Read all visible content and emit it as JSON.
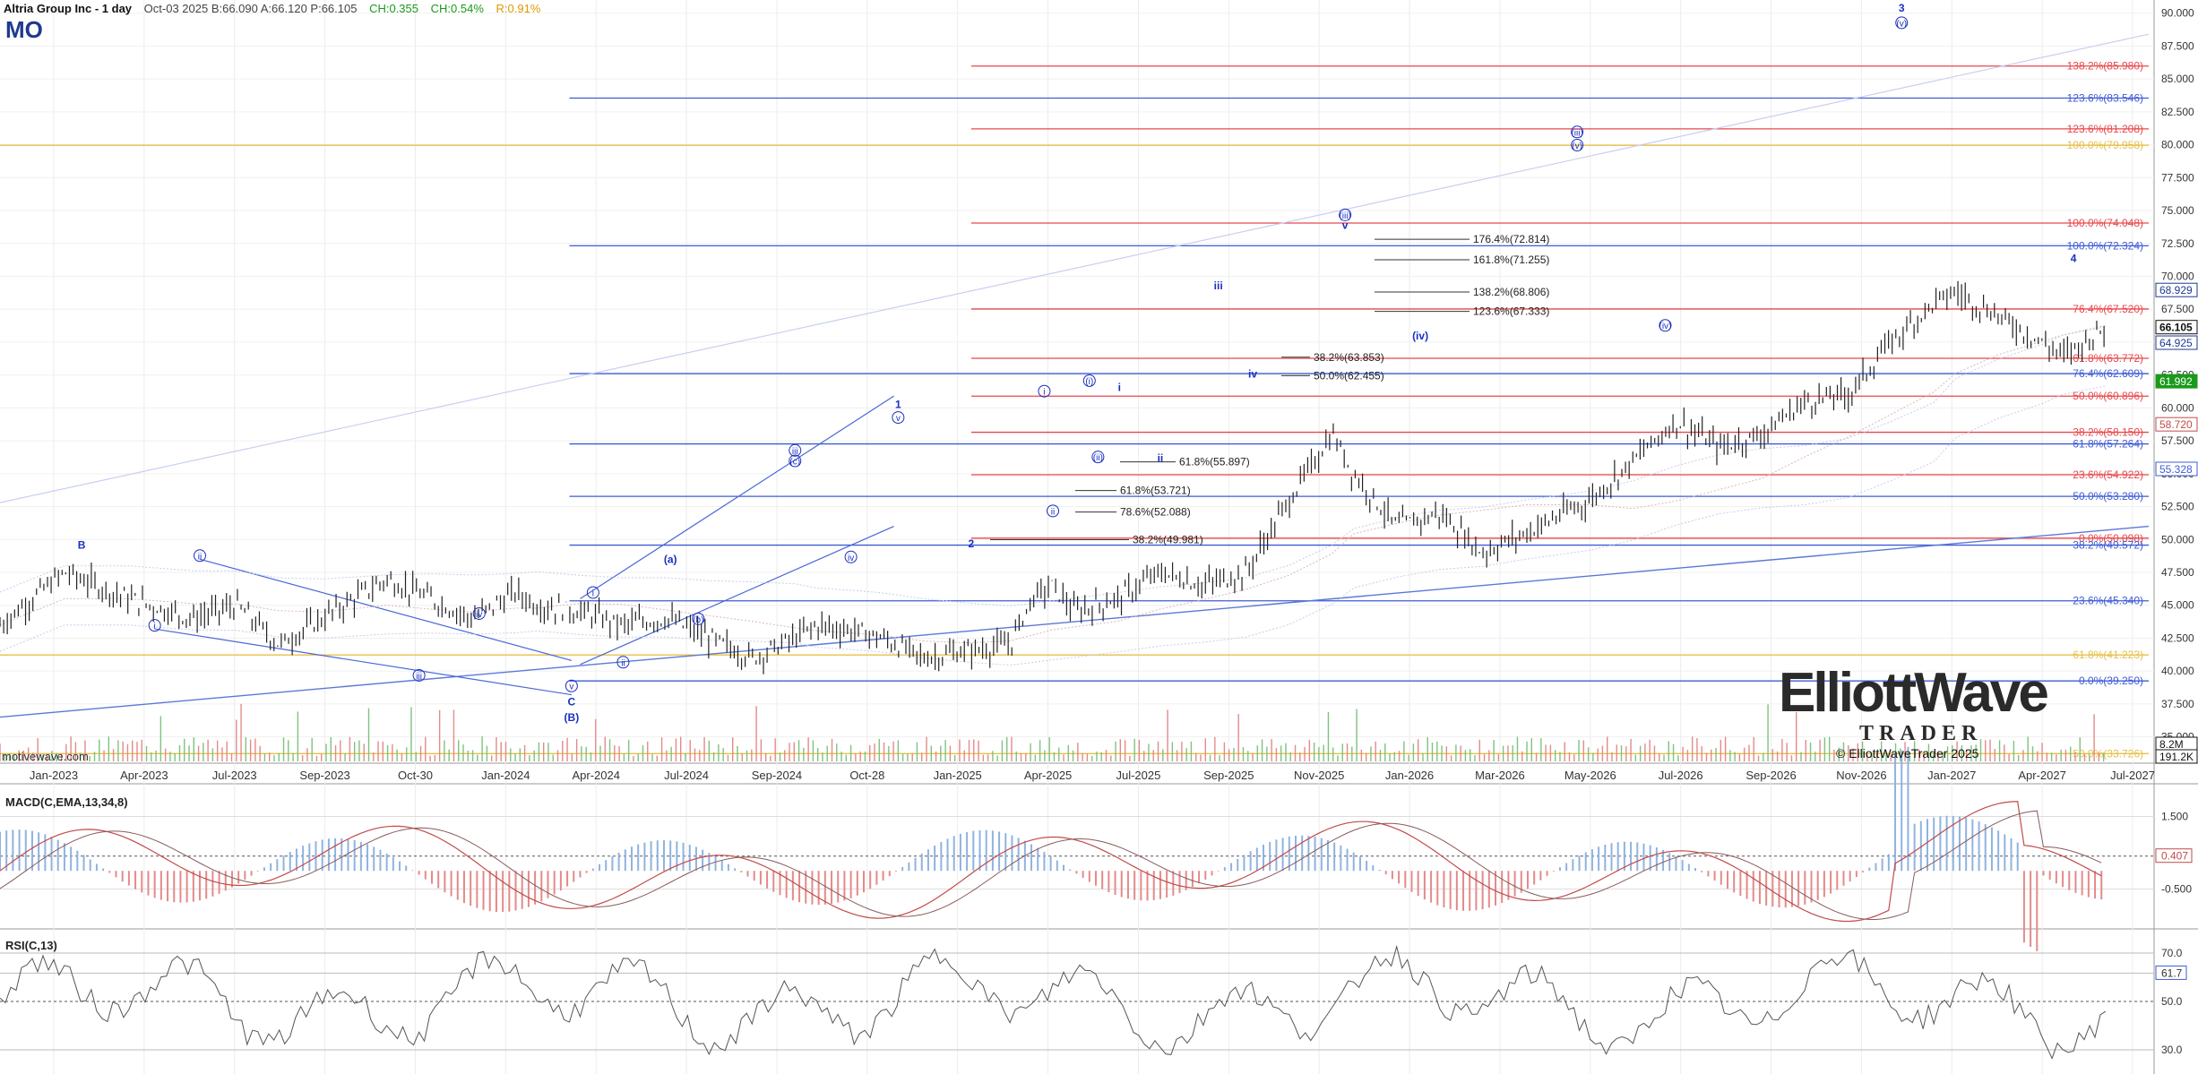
{
  "header": {
    "title": "Altria Group Inc - 1 day",
    "quote": "Oct-03 2025  B:66.090  A:66.120  P:66.105",
    "change_abs": "CH:0.355",
    "change_pct": "CH:0.54%",
    "range": "R:0.91%",
    "symbol": "MO"
  },
  "watermark": "motivewave.com",
  "copyright": "© ElliottWaveTrader 2025",
  "logo": {
    "line1": "ElliottWave",
    "line2": "TRADER"
  },
  "colors": {
    "up": "#222222",
    "fib_red": "#e8474b",
    "fib_blue": "#3f5bd6",
    "fib_gold": "#e8c04a",
    "wave": "#1a2fc0",
    "macd": "#c24a4a",
    "rsi": "#555555"
  },
  "chart_data": [
    {
      "type": "line",
      "name": "price",
      "ylim": [
        33,
        91
      ],
      "yticks": [
        "90.000",
        "87.500",
        "85.000",
        "82.500",
        "80.000",
        "77.500",
        "75.000",
        "72.500",
        "70.000",
        "67.500",
        "65.000",
        "62.500",
        "60.000",
        "57.500",
        "55.000",
        "52.500",
        "50.000",
        "47.500",
        "45.000",
        "42.500",
        "40.000",
        "37.500",
        "35.000"
      ],
      "xticks": [
        "Jan-2023",
        "Apr-2023",
        "Jul-2023",
        "Sep-2023",
        "Oct-30",
        "Jan-2024",
        "Apr-2024",
        "Jul-2024",
        "Sep-2024",
        "Oct-28",
        "Jan-2025",
        "Apr-2025",
        "Jul-2025",
        "Sep-2025",
        "Nov-2025",
        "Jan-2026",
        "Mar-2026",
        "May-2026",
        "Jul-2026",
        "Sep-2026",
        "Nov-2026",
        "Jan-2027",
        "Apr-2027",
        "Jul-2027"
      ],
      "price_points": [
        [
          0,
          43.5
        ],
        [
          3,
          47.5
        ],
        [
          6,
          45.5
        ],
        [
          9,
          44
        ],
        [
          11,
          45
        ],
        [
          13,
          42
        ],
        [
          15,
          44
        ],
        [
          18,
          47
        ],
        [
          20,
          45.5
        ],
        [
          22,
          44
        ],
        [
          24,
          46
        ],
        [
          25,
          45
        ],
        [
          27,
          44.5
        ],
        [
          29,
          43.5
        ],
        [
          31,
          44
        ],
        [
          33,
          42.5
        ],
        [
          35,
          41
        ],
        [
          37,
          42.5
        ],
        [
          38,
          43.5
        ],
        [
          40,
          43
        ],
        [
          41,
          42.5
        ],
        [
          43,
          41
        ],
        [
          45,
          41.5
        ],
        [
          47,
          42
        ],
        [
          48,
          45.5
        ],
        [
          49,
          46.5
        ],
        [
          50,
          44.5
        ],
        [
          52,
          45.5
        ],
        [
          54,
          47.5
        ],
        [
          56,
          46.5
        ],
        [
          58,
          47.5
        ],
        [
          60,
          53
        ],
        [
          62,
          58
        ],
        [
          63,
          55
        ],
        [
          65,
          51
        ],
        [
          67,
          52
        ],
        [
          69,
          49
        ],
        [
          71,
          50.5
        ],
        [
          74,
          53
        ],
        [
          76,
          56
        ],
        [
          78,
          59
        ],
        [
          80,
          57
        ],
        [
          82,
          58
        ],
        [
          84,
          60.5
        ],
        [
          86,
          61
        ],
        [
          88,
          65
        ],
        [
          90,
          68
        ],
        [
          91,
          68.8
        ],
        [
          93,
          67
        ],
        [
          95,
          65
        ],
        [
          96,
          64
        ],
        [
          98,
          66.1
        ]
      ],
      "price_labels": [
        {
          "text": "66.105",
          "color": "#111111"
        },
        {
          "text": "68.929",
          "color": "#1f3a8f"
        },
        {
          "text": "64.925",
          "color": "#1f3a8f"
        },
        {
          "text": "61.992",
          "color": "#1a9a1a"
        },
        {
          "text": "58.720",
          "color": "#c24a4a"
        },
        {
          "text": "55.328",
          "color": "#3f5bd6"
        },
        {
          "text": "8.2M",
          "color": "#111111"
        },
        {
          "text": "191.2K",
          "color": "#111111"
        }
      ],
      "fib_levels_right": [
        {
          "label": "138.2%(85.980)",
          "value": 85.98,
          "color": "red",
          "start": 0.452
        },
        {
          "label": "123.6%(83.546)",
          "value": 83.546,
          "color": "blue",
          "start": 0.265
        },
        {
          "label": "123.6%(81.208)",
          "value": 81.208,
          "color": "red",
          "start": 0.452
        },
        {
          "label": "100.0%(79.958)",
          "value": 79.958,
          "color": "gold",
          "start": 0.0
        },
        {
          "label": "100.0%(74.048)",
          "value": 74.048,
          "color": "red",
          "start": 0.452
        },
        {
          "label": "100.0%(72.324)",
          "value": 72.324,
          "color": "blue",
          "start": 0.265
        },
        {
          "label": "76.4%(67.520)",
          "value": 67.52,
          "color": "red",
          "start": 0.452
        },
        {
          "label": "61.8%(63.772)",
          "value": 63.772,
          "color": "red",
          "start": 0.452
        },
        {
          "label": "76.4%(62.609)",
          "value": 62.609,
          "color": "blue",
          "start": 0.265
        },
        {
          "label": "50.0%(60.896)",
          "value": 60.896,
          "color": "red",
          "start": 0.452
        },
        {
          "label": "38.2%(58.150)",
          "value": 58.15,
          "color": "red",
          "start": 0.452
        },
        {
          "label": "61.8%(57.264)",
          "value": 57.264,
          "color": "blue",
          "start": 0.265
        },
        {
          "label": "23.6%(54.922)",
          "value": 54.922,
          "color": "red",
          "start": 0.452
        },
        {
          "label": "50.0%(53.280)",
          "value": 53.28,
          "color": "blue",
          "start": 0.265
        },
        {
          "label": "0.0%(50.098)",
          "value": 50.098,
          "color": "red",
          "start": 0.452
        },
        {
          "label": "38.2%(49.572)",
          "value": 49.572,
          "color": "blue",
          "start": 0.265
        },
        {
          "label": "23.6%(45.340)",
          "value": 45.34,
          "color": "blue",
          "start": 0.265
        },
        {
          "label": "61.8%(41.223)",
          "value": 41.223,
          "color": "gold",
          "start": 0.0
        },
        {
          "label": "0.0%(39.250)",
          "value": 39.25,
          "color": "blue",
          "start": 0.265
        },
        {
          "label": "50.0%(33.726)",
          "value": 33.726,
          "color": "gold",
          "start": 0.0
        }
      ],
      "fib_levels_inline": [
        {
          "label": "176.4%(72.814)",
          "value": 72.814
        },
        {
          "label": "161.8%(71.255)",
          "value": 71.255
        },
        {
          "label": "138.2%(68.806)",
          "value": 68.806
        },
        {
          "label": "123.6%(67.333)",
          "value": 67.333
        },
        {
          "label": "38.2%(63.853)",
          "value": 63.853
        },
        {
          "label": "50.0%(62.455)",
          "value": 62.455
        },
        {
          "label": "61.8%(55.897)",
          "value": 55.897
        },
        {
          "label": "61.8%(53.721)",
          "value": 53.721
        },
        {
          "label": "78.6%(52.088)",
          "value": 52.088
        },
        {
          "label": "38.2%(49.981)",
          "value": 49.981
        }
      ],
      "wave_labels": [
        {
          "text": "B",
          "x": 3.8,
          "y": 49.3,
          "circle": false
        },
        {
          "text": "i",
          "x": 7.2,
          "y": 43.2,
          "circle": true
        },
        {
          "text": "ii",
          "x": 9.3,
          "y": 48.5,
          "circle": true
        },
        {
          "text": "iii",
          "x": 19.5,
          "y": 39.4,
          "circle": true
        },
        {
          "text": "iv",
          "x": 22.3,
          "y": 44.1,
          "circle": true
        },
        {
          "text": "v",
          "x": 26.6,
          "y": 38.6,
          "circle": true
        },
        {
          "text": "C",
          "x": 26.6,
          "y": 37.4,
          "circle": false
        },
        {
          "text": "(B)",
          "x": 26.6,
          "y": 36.2,
          "circle": false
        },
        {
          "text": "i",
          "x": 27.6,
          "y": 45.7,
          "circle": true
        },
        {
          "text": "ii",
          "x": 29.0,
          "y": 40.4,
          "circle": true
        },
        {
          "text": "(a)",
          "x": 31.2,
          "y": 48.2,
          "circle": false
        },
        {
          "text": "(b)",
          "x": 32.5,
          "y": 43.7,
          "circle": true
        },
        {
          "text": "(c)",
          "x": 37.0,
          "y": 55.7,
          "circle": true
        },
        {
          "text": "iii",
          "x": 37.0,
          "y": 56.5,
          "circle": true
        },
        {
          "text": "iv",
          "x": 39.6,
          "y": 48.4,
          "circle": true
        },
        {
          "text": "v",
          "x": 41.8,
          "y": 59.0,
          "circle": true
        },
        {
          "text": "1",
          "x": 41.8,
          "y": 60.0,
          "circle": false
        },
        {
          "text": "2",
          "x": 45.2,
          "y": 49.4,
          "circle": false
        },
        {
          "text": "i",
          "x": 48.6,
          "y": 61.0,
          "circle": true
        },
        {
          "text": "ii",
          "x": 49.0,
          "y": 51.9,
          "circle": true
        },
        {
          "text": "(i)",
          "x": 50.7,
          "y": 61.8,
          "circle": true
        },
        {
          "text": "(ii)",
          "x": 51.1,
          "y": 56.0,
          "circle": true
        },
        {
          "text": "i",
          "x": 52.1,
          "y": 61.3,
          "circle": false
        },
        {
          "text": "ii",
          "x": 54.0,
          "y": 55.9,
          "circle": false
        },
        {
          "text": "iii",
          "x": 56.7,
          "y": 69.0,
          "circle": false
        },
        {
          "text": "iv",
          "x": 58.3,
          "y": 62.3,
          "circle": false
        },
        {
          "text": "(iii)",
          "x": 62.6,
          "y": 74.4,
          "circle": true
        },
        {
          "text": "v",
          "x": 62.6,
          "y": 73.6,
          "circle": false
        },
        {
          "text": "(iv)",
          "x": 66.1,
          "y": 65.2,
          "circle": false
        },
        {
          "text": "(iii)",
          "x": 73.4,
          "y": 80.7,
          "circle": true
        },
        {
          "text": "(v)",
          "x": 73.4,
          "y": 79.7,
          "circle": true
        },
        {
          "text": "(iv)",
          "x": 77.5,
          "y": 66.0,
          "circle": true
        },
        {
          "text": "3",
          "x": 88.5,
          "y": 90.1,
          "circle": false
        },
        {
          "text": "(v)",
          "x": 88.5,
          "y": 89.0,
          "circle": true
        },
        {
          "text": "4",
          "x": 96.5,
          "y": 71.1,
          "circle": false
        }
      ]
    },
    {
      "type": "line",
      "name": "MACD(C,EMA,13,34,8)",
      "yticks": [
        "1.500",
        "0.407",
        "-0.500"
      ],
      "ylim": [
        -1.6,
        2.4
      ]
    },
    {
      "type": "line",
      "name": "RSI(C,13)",
      "yticks": [
        "70.0",
        "61.7",
        "50.0",
        "30.0"
      ],
      "ylim": [
        20,
        80
      ]
    }
  ]
}
